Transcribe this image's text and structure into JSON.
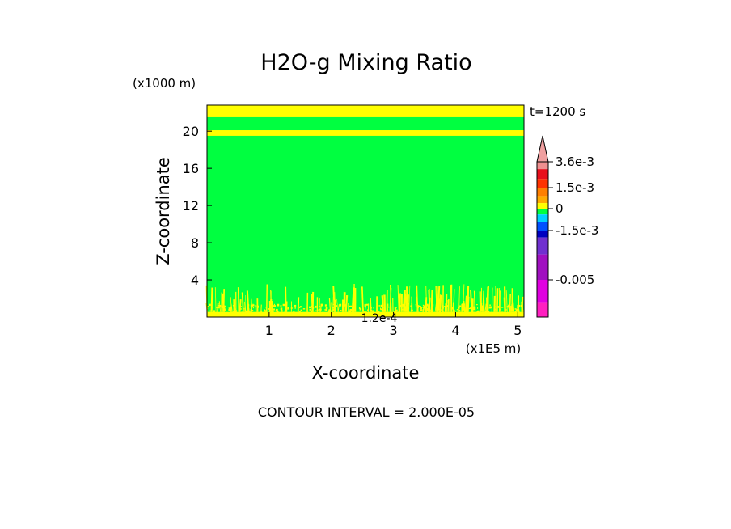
{
  "chart_data": {
    "type": "heatmap",
    "title": "H2O-g Mixing Ratio",
    "xlabel": "X-coordinate",
    "ylabel": "Z-coordinate",
    "x_unit": "(x1E5 m)",
    "y_unit": "(x1000 m)",
    "xlim": [
      0,
      5.1
    ],
    "ylim": [
      0,
      22.8
    ],
    "x_ticks": [
      1,
      2,
      3,
      4,
      5
    ],
    "x_tick_labels": [
      "1",
      "2",
      "3",
      "4",
      "5"
    ],
    "y_ticks": [
      4,
      8,
      12,
      16,
      20
    ],
    "y_tick_labels": [
      "4",
      "8",
      "12",
      "16",
      "20"
    ],
    "time_label": "t=1200 s",
    "contour_interval": "CONTOUR INTERVAL = 2.000E-05",
    "annotation": {
      "text": "1.2e-4",
      "x": 3.0,
      "y": -0.2
    },
    "background_value": 0,
    "fields": [
      {
        "name": "upper layer",
        "z_min": 21.5,
        "z_max": 22.8,
        "value": 0.00012
      },
      {
        "name": "upper band",
        "z_min": 19.5,
        "z_max": 20.1,
        "value": 0.00012
      },
      {
        "name": "surface layer",
        "z_min": 0.0,
        "z_max": 0.55,
        "value": 0.00012
      },
      {
        "name": "low-level streaks",
        "z_min": 0.55,
        "z_max": 3.8,
        "value": 0.00012
      }
    ],
    "colorbar": {
      "labels": [
        "3.6e-3",
        "1.5e-3",
        "0",
        "-1.5e-3",
        "-0.005"
      ],
      "label_values": [
        0.0036,
        0.0015,
        0,
        -0.0015,
        -0.005
      ],
      "levels": [
        {
          "upper": 0.0036,
          "color": "#f09090"
        },
        {
          "upper": 0.003,
          "color": "#e8101c"
        },
        {
          "upper": 0.0022,
          "color": "#ff3300"
        },
        {
          "upper": 0.0015,
          "color": "#ff7f00"
        },
        {
          "upper": 0.0009,
          "color": "#ffaa00"
        },
        {
          "upper": 0.0004,
          "color": "#ffff00"
        },
        {
          "upper": 0.0,
          "color": "#00ff40"
        },
        {
          "upper": -0.0004,
          "color": "#00d0ff"
        },
        {
          "upper": -0.0009,
          "color": "#0050ff"
        },
        {
          "upper": -0.0015,
          "color": "#0000c0"
        },
        {
          "upper": -0.002,
          "color": "#7030d0"
        },
        {
          "upper": -0.0032,
          "color": "#a010c0"
        },
        {
          "upper": -0.005,
          "color": "#e000e0"
        },
        {
          "upper": -0.0065,
          "color": "#ff20c0"
        }
      ],
      "top_triangle_color": "#f0a0a0"
    },
    "colors": {
      "background_field": "#00ff40",
      "moist": "#ffff00",
      "frame": "#000000"
    }
  }
}
